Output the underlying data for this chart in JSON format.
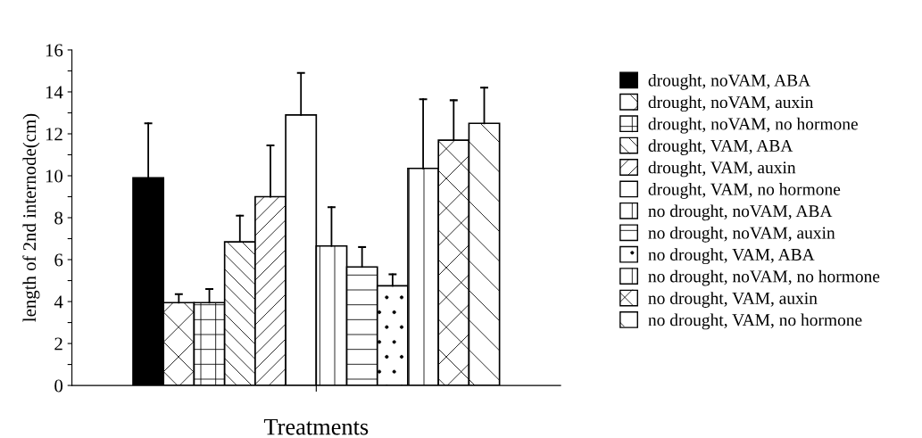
{
  "chart_data": {
    "type": "bar",
    "xlabel": "Treatments",
    "ylabel": "length of 2nd internode(cm)",
    "categories": [
      null
    ],
    "series": [
      {
        "name": "drought, noVAM, ABA",
        "color": "#000000",
        "values": [
          9.9
        ],
        "errors": [
          [
            9.9,
            12.5
          ]
        ]
      },
      {
        "name": "drought, noVAM, auxin",
        "color": "#ffffff",
        "values": [
          3.95
        ],
        "errors": [
          [
            3.95,
            4.35
          ]
        ]
      },
      {
        "name": "drought, noVAM, no hormone",
        "color": "#ffffff",
        "values": [
          3.95
        ],
        "errors": [
          [
            3.95,
            4.6
          ]
        ]
      },
      {
        "name": "drought, VAM, ABA",
        "color": "#ffffff",
        "values": [
          6.85
        ],
        "errors": [
          [
            6.85,
            8.1
          ]
        ]
      },
      {
        "name": "drought, VAM, auxin",
        "color": "#ffffff",
        "values": [
          9.0
        ],
        "errors": [
          [
            9.0,
            11.45
          ]
        ]
      },
      {
        "name": "drought, VAM, no hormone",
        "color": "#ffffff",
        "values": [
          12.9
        ],
        "errors": [
          [
            12.9,
            14.9
          ]
        ]
      },
      {
        "name": "no drought, noVAM, ABA",
        "color": "#ffffff",
        "values": [
          6.65
        ],
        "errors": [
          [
            6.65,
            8.5
          ]
        ]
      },
      {
        "name": "no drought, noVAM, auxin",
        "color": "#ffffff",
        "values": [
          5.65
        ],
        "errors": [
          [
            5.65,
            6.6
          ]
        ]
      },
      {
        "name": "no drought, VAM, ABA",
        "color": "#ffffff",
        "values": [
          4.75
        ],
        "errors": [
          [
            4.75,
            5.3
          ]
        ]
      },
      {
        "name": "no drought, noVAM, no hormone",
        "color": "#ffffff",
        "values": [
          10.35
        ],
        "errors": [
          [
            10.35,
            13.65
          ]
        ]
      },
      {
        "name": "no drought, VAM, auxin",
        "color": "#ffffff",
        "values": [
          11.7
        ],
        "errors": [
          [
            11.7,
            13.6
          ]
        ]
      },
      {
        "name": "no drought, VAM, no hormone",
        "color": "#ffffff",
        "values": [
          12.5
        ],
        "errors": [
          [
            12.5,
            14.2
          ]
        ]
      }
    ],
    "ylim": [
      0,
      16
    ],
    "yticks": [
      0,
      {
        "value": 1,
        "label": null
      },
      2,
      {
        "value": 3,
        "label": null
      },
      4,
      {
        "value": 5,
        "label": null
      },
      6,
      {
        "value": 7,
        "label": null
      },
      8,
      {
        "value": 9,
        "label": null
      },
      10,
      {
        "value": 11,
        "label": null
      },
      12,
      {
        "value": 13,
        "label": null
      },
      14,
      {
        "value": 15,
        "label": null
      },
      16
    ],
    "grid": false,
    "legend": "right"
  }
}
